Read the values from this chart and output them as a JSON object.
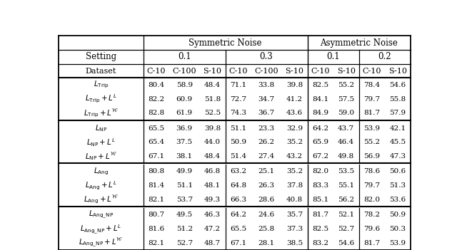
{
  "groups": [
    {
      "rows": [
        [
          "L_Trip",
          "80.4",
          "58.9",
          "48.4",
          "71.1",
          "33.8",
          "39.8",
          "82.5",
          "55.2",
          "78.4",
          "54.6"
        ],
        [
          "L_Trip_L",
          "82.2",
          "60.9",
          "51.8",
          "72.7",
          "34.7",
          "41.2",
          "84.1",
          "57.5",
          "79.7",
          "55.8"
        ],
        [
          "L_Trip_W",
          "82.8",
          "61.9",
          "52.5",
          "74.3",
          "36.7",
          "43.6",
          "84.9",
          "59.0",
          "81.7",
          "57.9"
        ]
      ]
    },
    {
      "rows": [
        [
          "L_NP",
          "65.5",
          "36.9",
          "39.8",
          "51.1",
          "23.3",
          "32.9",
          "64.2",
          "43.7",
          "53.9",
          "42.1"
        ],
        [
          "L_NP_L",
          "65.4",
          "37.5",
          "44.0",
          "50.9",
          "26.2",
          "35.2",
          "65.9",
          "46.4",
          "55.2",
          "45.5"
        ],
        [
          "L_NP_W",
          "67.1",
          "38.1",
          "48.4",
          "51.4",
          "27.4",
          "43.2",
          "67.2",
          "49.8",
          "56.9",
          "47.3"
        ]
      ]
    },
    {
      "rows": [
        [
          "L_Ang",
          "80.8",
          "49.9",
          "46.8",
          "63.2",
          "25.1",
          "35.2",
          "82.0",
          "53.5",
          "78.6",
          "50.6"
        ],
        [
          "L_Ang_L",
          "81.4",
          "51.1",
          "48.1",
          "64.8",
          "26.3",
          "37.8",
          "83.3",
          "55.1",
          "79.7",
          "51.3"
        ],
        [
          "L_Ang_W",
          "82.1",
          "53.7",
          "49.3",
          "66.3",
          "28.6",
          "40.8",
          "85.1",
          "56.2",
          "82.0",
          "53.6"
        ]
      ]
    },
    {
      "rows": [
        [
          "L_AngNP",
          "80.7",
          "49.5",
          "46.3",
          "64.2",
          "24.6",
          "35.7",
          "81.7",
          "52.1",
          "78.2",
          "50.9"
        ],
        [
          "L_AngNP_L",
          "81.6",
          "51.2",
          "47.2",
          "65.5",
          "25.8",
          "37.3",
          "82.5",
          "52.7",
          "79.6",
          "50.3"
        ],
        [
          "L_AngNP_W",
          "82.1",
          "52.7",
          "48.7",
          "67.1",
          "28.1",
          "38.5",
          "83.2",
          "54.6",
          "81.7",
          "53.9"
        ]
      ]
    }
  ],
  "col_widths": [
    1.8,
    0.55,
    0.65,
    0.55,
    0.55,
    0.65,
    0.55,
    0.55,
    0.55,
    0.55,
    0.55
  ],
  "figsize": [
    6.4,
    3.51
  ],
  "dpi": 100
}
